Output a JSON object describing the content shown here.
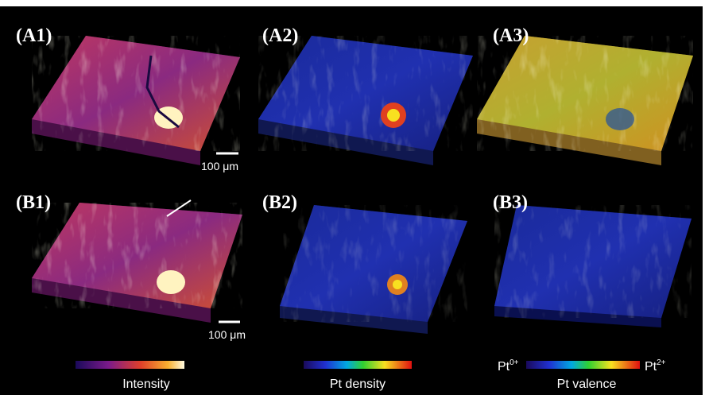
{
  "panels": [
    {
      "label": "(A1)"
    },
    {
      "label": "(A2)"
    },
    {
      "label": "(A3)"
    },
    {
      "label": "(B1)"
    },
    {
      "label": "(B2)"
    },
    {
      "label": "(B3)"
    }
  ],
  "scale_bars": [
    "100 μm",
    "100 μm"
  ],
  "colorbars": [
    {
      "title": "Intensity"
    },
    {
      "title": "Pt density"
    },
    {
      "title": "Pt valence",
      "min": {
        "base": "Pt",
        "sup": "0+"
      },
      "max": {
        "base": "Pt",
        "sup": "2+"
      }
    }
  ]
}
